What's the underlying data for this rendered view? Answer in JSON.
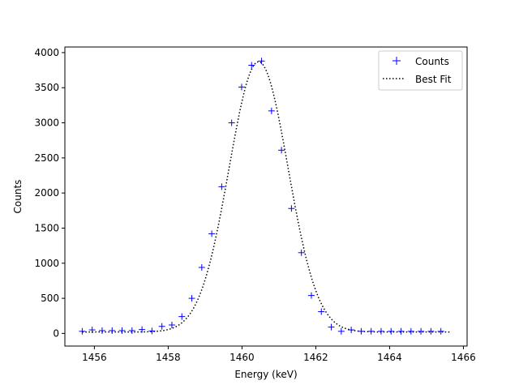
{
  "chart_data": {
    "type": "scatter",
    "title": "",
    "xlabel": "Energy (keV)",
    "ylabel": "Counts",
    "xlim": [
      1455.2,
      1466.1
    ],
    "ylim": [
      -180,
      4080
    ],
    "xticks": [
      1456,
      1458,
      1460,
      1462,
      1464,
      1466
    ],
    "yticks": [
      0,
      500,
      1000,
      1500,
      2000,
      2500,
      3000,
      3500,
      4000
    ],
    "grid": false,
    "legend_position": "top-right",
    "series": [
      {
        "name": "Counts",
        "marker": "plus",
        "color": "#0000ff",
        "x": [
          1455.67,
          1455.94,
          1456.21,
          1456.48,
          1456.75,
          1457.02,
          1457.29,
          1457.56,
          1457.83,
          1458.1,
          1458.37,
          1458.64,
          1458.91,
          1459.18,
          1459.45,
          1459.72,
          1459.99,
          1460.26,
          1460.53,
          1460.8,
          1461.07,
          1461.34,
          1461.61,
          1461.88,
          1462.15,
          1462.42,
          1462.69,
          1462.96,
          1463.23,
          1463.5,
          1463.77,
          1464.04,
          1464.31,
          1464.58,
          1464.85,
          1465.12,
          1465.39
        ],
        "y": [
          30,
          50,
          40,
          40,
          40,
          40,
          55,
          35,
          100,
          120,
          240,
          500,
          940,
          1420,
          2090,
          3000,
          3510,
          3820,
          3880,
          3170,
          2610,
          1780,
          1150,
          540,
          310,
          90,
          30,
          50,
          30,
          30,
          30,
          30,
          30,
          30,
          30,
          30,
          30
        ]
      },
      {
        "name": "Best Fit",
        "line_style": "dotted",
        "color": "#000000",
        "model": "gaussian",
        "amplitude": 3850,
        "center": 1460.45,
        "sigma": 0.8,
        "baseline": 20,
        "x_range": [
          1455.67,
          1465.67
        ]
      }
    ]
  }
}
